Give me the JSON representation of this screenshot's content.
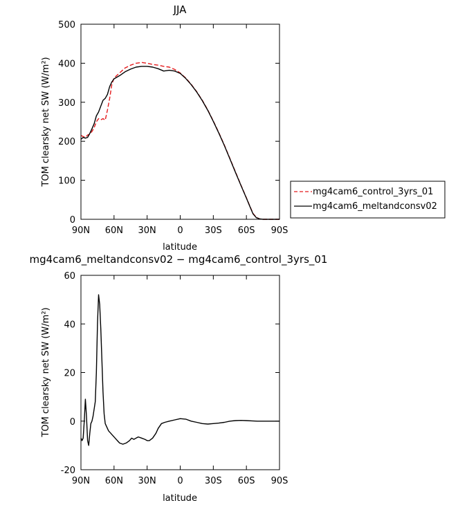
{
  "chart_data": [
    {
      "type": "line",
      "title": "JJA",
      "xlabel": "latitude",
      "ylabel": "TOM clearsky net SW (W/m²)",
      "ylim": [
        0,
        500
      ],
      "yticks": [
        0,
        100,
        200,
        300,
        400,
        500
      ],
      "xlim": [
        90,
        -90
      ],
      "xticks": [
        90,
        60,
        30,
        0,
        -30,
        -60,
        -90
      ],
      "xticklabels": [
        "90N",
        "60N",
        "30N",
        "0",
        "30S",
        "60S",
        "90S"
      ],
      "legend_position": "right",
      "series": [
        {
          "name": "mg4cam6_control_3yrs_01",
          "color": "#e41a1c",
          "dash": "dashed",
          "points": [
            [
              90,
              215
            ],
            [
              88,
              212
            ],
            [
              86,
              210
            ],
            [
              84,
              216
            ],
            [
              82,
              218
            ],
            [
              80,
              225
            ],
            [
              78,
              235
            ],
            [
              76,
              250
            ],
            [
              74,
              258
            ],
            [
              72,
              255
            ],
            [
              70,
              258
            ],
            [
              68,
              254
            ],
            [
              66,
              280
            ],
            [
              64,
              310
            ],
            [
              62,
              345
            ],
            [
              60,
              362
            ],
            [
              55,
              375
            ],
            [
              50,
              388
            ],
            [
              45,
              395
            ],
            [
              40,
              400
            ],
            [
              35,
              402
            ],
            [
              30,
              400
            ],
            [
              25,
              397
            ],
            [
              20,
              395
            ],
            [
              15,
              392
            ],
            [
              10,
              390
            ],
            [
              5,
              384
            ],
            [
              0,
              375
            ],
            [
              -5,
              362
            ],
            [
              -10,
              346
            ],
            [
              -15,
              327
            ],
            [
              -20,
              305
            ],
            [
              -25,
              280
            ],
            [
              -30,
              252
            ],
            [
              -35,
              222
            ],
            [
              -40,
              190
            ],
            [
              -45,
              156
            ],
            [
              -50,
              122
            ],
            [
              -55,
              88
            ],
            [
              -60,
              55
            ],
            [
              -63,
              35
            ],
            [
              -66,
              15
            ],
            [
              -69,
              5
            ],
            [
              -72,
              1
            ],
            [
              -75,
              0
            ],
            [
              -80,
              0
            ],
            [
              -85,
              0
            ],
            [
              -90,
              0
            ]
          ]
        },
        {
          "name": "mg4cam6_meltandconsv02",
          "color": "#000000",
          "dash": "solid",
          "points": [
            [
              90,
              205
            ],
            [
              88,
              210
            ],
            [
              86,
              208
            ],
            [
              84,
              210
            ],
            [
              82,
              220
            ],
            [
              80,
              232
            ],
            [
              78,
              245
            ],
            [
              76,
              265
            ],
            [
              74,
              275
            ],
            [
              72,
              290
            ],
            [
              70,
              305
            ],
            [
              68,
              310
            ],
            [
              66,
              320
            ],
            [
              64,
              340
            ],
            [
              62,
              352
            ],
            [
              60,
              360
            ],
            [
              55,
              368
            ],
            [
              50,
              378
            ],
            [
              45,
              385
            ],
            [
              40,
              390
            ],
            [
              35,
              392
            ],
            [
              30,
              392
            ],
            [
              25,
              390
            ],
            [
              20,
              386
            ],
            [
              15,
              380
            ],
            [
              10,
              382
            ],
            [
              5,
              380
            ],
            [
              0,
              374
            ],
            [
              -5,
              361
            ],
            [
              -10,
              345
            ],
            [
              -15,
              326
            ],
            [
              -20,
              304
            ],
            [
              -25,
              279
            ],
            [
              -30,
              251
            ],
            [
              -35,
              221
            ],
            [
              -40,
              189
            ],
            [
              -45,
              155
            ],
            [
              -50,
              121
            ],
            [
              -55,
              87
            ],
            [
              -60,
              54
            ],
            [
              -63,
              34
            ],
            [
              -66,
              14
            ],
            [
              -69,
              4
            ],
            [
              -72,
              1
            ],
            [
              -75,
              0
            ],
            [
              -80,
              0
            ],
            [
              -85,
              0
            ],
            [
              -90,
              0
            ]
          ]
        }
      ]
    },
    {
      "type": "line",
      "title": "mg4cam6_meltandconsv02 − mg4cam6_control_3yrs_01",
      "xlabel": "latitude",
      "ylabel": "TOM clearsky net SW (W/m²)",
      "ylim": [
        -20,
        60
      ],
      "yticks": [
        -20,
        0,
        20,
        40,
        60
      ],
      "xlim": [
        90,
        -90
      ],
      "xticks": [
        90,
        60,
        30,
        0,
        -30,
        -60,
        -90
      ],
      "xticklabels": [
        "90N",
        "60N",
        "30N",
        "0",
        "30S",
        "60S",
        "90S"
      ],
      "series": [
        {
          "color": "#000000",
          "dash": "solid",
          "points": [
            [
              90,
              -7
            ],
            [
              89,
              -8
            ],
            [
              88,
              -7
            ],
            [
              87,
              0
            ],
            [
              86,
              9
            ],
            [
              85,
              2
            ],
            [
              84,
              -8
            ],
            [
              83,
              -10
            ],
            [
              82,
              -5
            ],
            [
              81,
              -1
            ],
            [
              80,
              0
            ],
            [
              79,
              2
            ],
            [
              78,
              5
            ],
            [
              77,
              8
            ],
            [
              76,
              20
            ],
            [
              75,
              40
            ],
            [
              74,
              52
            ],
            [
              73,
              48
            ],
            [
              72,
              38
            ],
            [
              71,
              25
            ],
            [
              70,
              12
            ],
            [
              69,
              3
            ],
            [
              68,
              -1
            ],
            [
              67,
              -2
            ],
            [
              65,
              -4
            ],
            [
              63,
              -5
            ],
            [
              61,
              -6
            ],
            [
              59,
              -7
            ],
            [
              57,
              -8
            ],
            [
              55,
              -9
            ],
            [
              52,
              -9.5
            ],
            [
              49,
              -9
            ],
            [
              46,
              -8
            ],
            [
              44,
              -7
            ],
            [
              42,
              -7.5
            ],
            [
              40,
              -7
            ],
            [
              38,
              -6.5
            ],
            [
              35,
              -7
            ],
            [
              32,
              -7.5
            ],
            [
              30,
              -8
            ],
            [
              28,
              -8
            ],
            [
              25,
              -7
            ],
            [
              22,
              -5
            ],
            [
              20,
              -3
            ],
            [
              17,
              -1
            ],
            [
              14,
              -0.5
            ],
            [
              10,
              0
            ],
            [
              5,
              0.5
            ],
            [
              0,
              1
            ],
            [
              -5,
              0.8
            ],
            [
              -10,
              0
            ],
            [
              -15,
              -0.5
            ],
            [
              -20,
              -1
            ],
            [
              -25,
              -1.2
            ],
            [
              -30,
              -1
            ],
            [
              -35,
              -0.8
            ],
            [
              -40,
              -0.5
            ],
            [
              -45,
              0
            ],
            [
              -50,
              0.2
            ],
            [
              -55,
              0.3
            ],
            [
              -60,
              0.2
            ],
            [
              -65,
              0.1
            ],
            [
              -70,
              0
            ],
            [
              -75,
              0
            ],
            [
              -80,
              0
            ],
            [
              -85,
              0
            ],
            [
              -90,
              0
            ]
          ]
        }
      ]
    }
  ]
}
